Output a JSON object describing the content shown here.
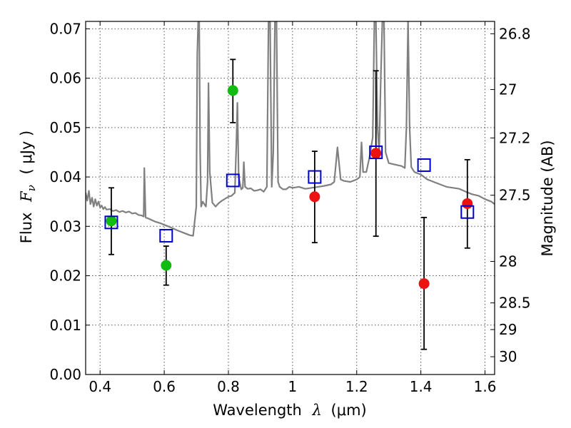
{
  "chart_data": {
    "type": "scatter",
    "title": "",
    "xlabel": "Wavelength",
    "xlabel_symbol": "λ",
    "xlabel_unit": "(μm)",
    "ylabel": "Flux",
    "ylabel_symbol": "F",
    "ylabel_subscript": "ν",
    "ylabel_unit": "( μJy )",
    "ylabel_right": "Magnitude (AB)",
    "xlim": [
      0.355,
      1.63
    ],
    "ylim": [
      0.0,
      0.0715
    ],
    "grid": true,
    "x_ticks": [
      0.4,
      0.6,
      0.8,
      1.0,
      1.2,
      1.4,
      1.6
    ],
    "x_tick_labels": [
      "0.4",
      "0.6",
      "0.8",
      "1",
      "1.2",
      "1.4",
      "1.6"
    ],
    "y_ticks": [
      0.0,
      0.01,
      0.02,
      0.03,
      0.04,
      0.05,
      0.06,
      0.07
    ],
    "y_tick_labels": [
      "0.00",
      "0.01",
      "0.02",
      "0.03",
      "0.04",
      "0.05",
      "0.06",
      "0.07"
    ],
    "right_ticks": [
      {
        "label": "26.8",
        "flux": 0.069
      },
      {
        "label": "27",
        "flux": 0.0577
      },
      {
        "label": "27.2",
        "flux": 0.0479
      },
      {
        "label": "27.5",
        "flux": 0.0363
      },
      {
        "label": "28",
        "flux": 0.0229
      },
      {
        "label": "28.5",
        "flux": 0.0145
      },
      {
        "label": "29",
        "flux": 0.0091
      },
      {
        "label": "30",
        "flux": 0.0036
      }
    ],
    "colors": {
      "template": "#808080",
      "green": "#11bb11",
      "red": "#ee1111",
      "model": "#0000cc",
      "error": "#000000"
    },
    "series": [
      {
        "name": "observed-green",
        "color": "green",
        "points": [
          {
            "x": 0.435,
            "y": 0.0311,
            "lo": 0.0243,
            "hi": 0.0378
          },
          {
            "x": 0.606,
            "y": 0.0221,
            "lo": 0.0181,
            "hi": 0.026
          },
          {
            "x": 0.814,
            "y": 0.0575,
            "lo": 0.051,
            "hi": 0.0638
          }
        ]
      },
      {
        "name": "observed-red",
        "color": "red",
        "points": [
          {
            "x": 1.069,
            "y": 0.036,
            "lo": 0.0267,
            "hi": 0.0452
          },
          {
            "x": 1.26,
            "y": 0.0448,
            "lo": 0.028,
            "hi": 0.0615
          },
          {
            "x": 1.41,
            "y": 0.0184,
            "lo": 0.0051,
            "hi": 0.0318
          },
          {
            "x": 1.545,
            "y": 0.0346,
            "lo": 0.0256,
            "hi": 0.0435
          }
        ]
      },
      {
        "name": "model-photometry",
        "color": "model",
        "points": [
          {
            "x": 0.435,
            "y": 0.0308
          },
          {
            "x": 0.606,
            "y": 0.0281
          },
          {
            "x": 0.814,
            "y": 0.0393
          },
          {
            "x": 1.069,
            "y": 0.04
          },
          {
            "x": 1.26,
            "y": 0.045
          },
          {
            "x": 1.41,
            "y": 0.0424
          },
          {
            "x": 1.545,
            "y": 0.0329
          }
        ]
      }
    ],
    "template_spectrum": {
      "x": [
        0.355,
        0.36,
        0.365,
        0.37,
        0.375,
        0.38,
        0.385,
        0.39,
        0.395,
        0.4,
        0.405,
        0.41,
        0.415,
        0.42,
        0.43,
        0.44,
        0.45,
        0.46,
        0.47,
        0.48,
        0.49,
        0.5,
        0.51,
        0.52,
        0.53,
        0.536,
        0.538,
        0.542,
        0.55,
        0.56,
        0.57,
        0.58,
        0.59,
        0.6,
        0.62,
        0.64,
        0.66,
        0.68,
        0.69,
        0.7,
        0.703,
        0.706,
        0.709,
        0.712,
        0.715,
        0.72,
        0.73,
        0.735,
        0.738,
        0.742,
        0.75,
        0.76,
        0.77,
        0.78,
        0.79,
        0.8,
        0.81,
        0.82,
        0.825,
        0.828,
        0.832,
        0.84,
        0.845,
        0.848,
        0.852,
        0.86,
        0.87,
        0.88,
        0.89,
        0.9,
        0.91,
        0.92,
        0.925,
        0.93,
        0.935,
        0.94,
        0.945,
        0.95,
        0.955,
        0.96,
        0.97,
        0.98,
        0.99,
        1.0,
        1.02,
        1.04,
        1.06,
        1.08,
        1.1,
        1.12,
        1.13,
        1.14,
        1.15,
        1.16,
        1.18,
        1.2,
        1.21,
        1.215,
        1.22,
        1.23,
        1.24,
        1.25,
        1.255,
        1.26,
        1.265,
        1.27,
        1.275,
        1.28,
        1.285,
        1.29,
        1.3,
        1.32,
        1.34,
        1.35,
        1.355,
        1.36,
        1.365,
        1.37,
        1.38,
        1.4,
        1.42,
        1.44,
        1.46,
        1.48,
        1.5,
        1.52,
        1.54,
        1.56,
        1.58,
        1.6,
        1.62,
        1.63
      ],
      "y": [
        0.0368,
        0.0352,
        0.0372,
        0.0345,
        0.0358,
        0.034,
        0.0355,
        0.0342,
        0.035,
        0.0338,
        0.0342,
        0.0335,
        0.0339,
        0.0334,
        0.0335,
        0.0331,
        0.0333,
        0.0329,
        0.0331,
        0.0328,
        0.033,
        0.0326,
        0.0327,
        0.0323,
        0.0322,
        0.032,
        0.0418,
        0.0318,
        0.0316,
        0.0313,
        0.031,
        0.0308,
        0.0306,
        0.0303,
        0.0298,
        0.0292,
        0.0287,
        0.0282,
        0.0281,
        0.034,
        0.065,
        0.0715,
        0.0715,
        0.045,
        0.034,
        0.035,
        0.034,
        0.039,
        0.059,
        0.041,
        0.0348,
        0.034,
        0.0347,
        0.0352,
        0.0356,
        0.036,
        0.0362,
        0.0368,
        0.047,
        0.055,
        0.04,
        0.0375,
        0.0378,
        0.043,
        0.038,
        0.0376,
        0.0377,
        0.0372,
        0.0373,
        0.0375,
        0.037,
        0.038,
        0.0715,
        0.0715,
        0.038,
        0.045,
        0.0715,
        0.0715,
        0.039,
        0.038,
        0.0375,
        0.0375,
        0.038,
        0.0378,
        0.038,
        0.0376,
        0.0378,
        0.038,
        0.0382,
        0.0385,
        0.039,
        0.046,
        0.0395,
        0.0392,
        0.039,
        0.0395,
        0.04,
        0.047,
        0.041,
        0.041,
        0.044,
        0.048,
        0.0715,
        0.0715,
        0.05,
        0.045,
        0.06,
        0.0715,
        0.0715,
        0.045,
        0.0428,
        0.0425,
        0.0422,
        0.0418,
        0.05,
        0.0715,
        0.05,
        0.042,
        0.041,
        0.0405,
        0.0395,
        0.039,
        0.0385,
        0.038,
        0.0378,
        0.0376,
        0.037,
        0.0365,
        0.0362,
        0.0355,
        0.035,
        0.0345
      ]
    }
  }
}
